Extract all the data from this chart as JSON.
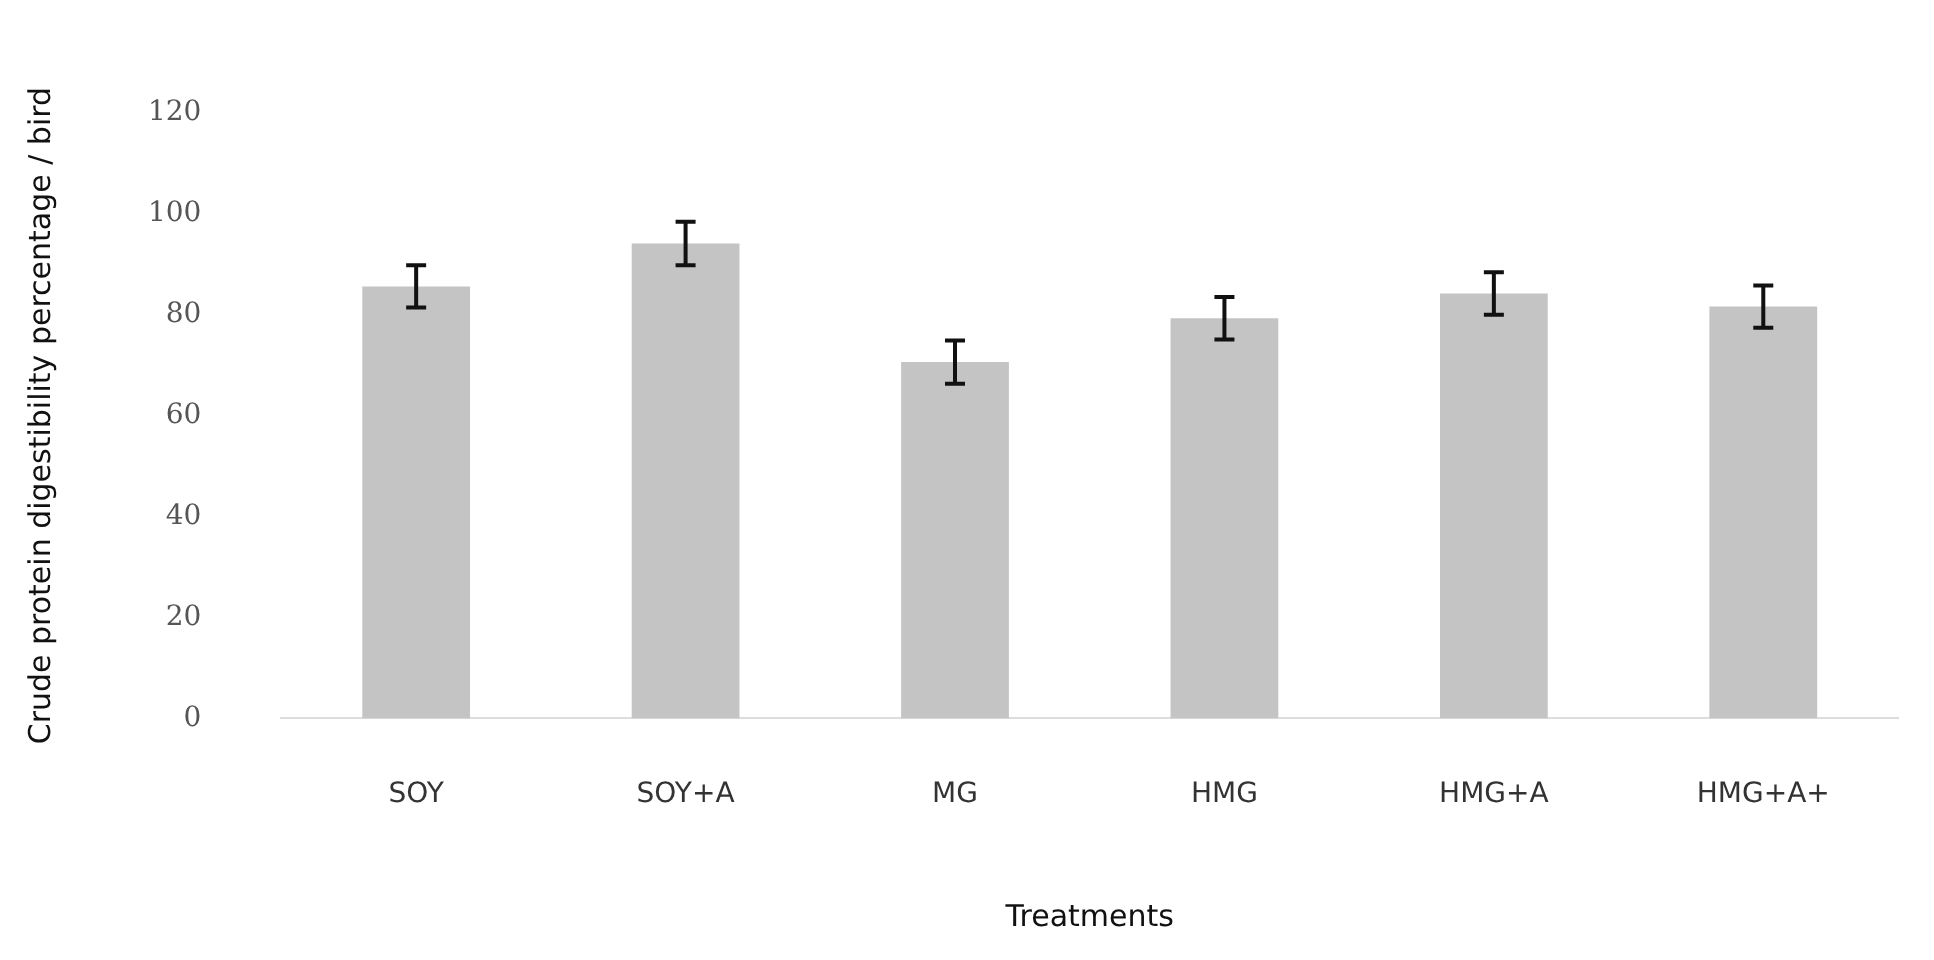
{
  "chart_data": {
    "type": "bar",
    "xlabel": "Treatments",
    "ylabel": "Crude protein digestibility percentage / bird",
    "categories": [
      "SOY",
      "SOY+A",
      "MG",
      "HMG",
      "HMG+A",
      "HMG+A+"
    ],
    "values": [
      85.6,
      94.1,
      70.6,
      79.3,
      84.2,
      81.6
    ],
    "errors": [
      4.2,
      4.3,
      4.3,
      4.2,
      4.2,
      4.2
    ],
    "color": "#c4c4c4",
    "ylim": [
      0,
      120
    ],
    "yticks": [
      0,
      20,
      40,
      60,
      80,
      100,
      120
    ],
    "grid": false,
    "legend": false
  }
}
